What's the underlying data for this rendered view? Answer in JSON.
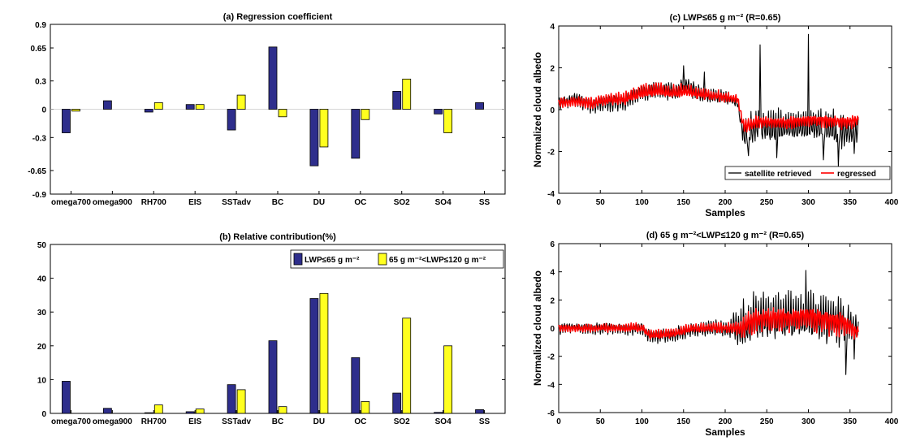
{
  "colors": {
    "lwp_low": "#2e2e8c",
    "lwp_mid": "#ffff1f",
    "retrieved": "#000000",
    "regressed": "#ff0000"
  },
  "chart_data": [
    {
      "id": "a",
      "type": "bar",
      "title": "(a) Regression coefficient",
      "categories": [
        "omega700",
        "omega900",
        "RH700",
        "EIS",
        "SSTadv",
        "BC",
        "DU",
        "OC",
        "SO2",
        "SO4",
        "SS"
      ],
      "series": [
        {
          "values": [
            -0.25,
            0.09,
            -0.03,
            0.05,
            -0.22,
            0.66,
            -0.6,
            -0.52,
            0.19,
            -0.05,
            0.07
          ]
        },
        {
          "values": [
            -0.02,
            0.0,
            0.07,
            0.05,
            0.15,
            -0.08,
            -0.4,
            -0.11,
            0.32,
            -0.25,
            0.0
          ]
        }
      ],
      "ylim": [
        -0.9,
        0.9
      ],
      "yticks": [
        "-0.9",
        "-0.65",
        "-0.3",
        "0",
        "0.3",
        "0.65",
        "0.9"
      ],
      "grid": false
    },
    {
      "id": "b",
      "type": "bar",
      "title": "(b) Relative contribution(%)",
      "categories": [
        "omega700",
        "omega900",
        "RH700",
        "EIS",
        "SSTadv",
        "BC",
        "DU",
        "OC",
        "SO2",
        "SO4",
        "SS"
      ],
      "series": [
        {
          "name": "LWP≤65 g m⁻²",
          "values": [
            9.5,
            1.5,
            0.2,
            0.5,
            8.5,
            21.5,
            34,
            16.5,
            6,
            0.3,
            1.1
          ]
        },
        {
          "name": "65 g m⁻²<LWP≤120 g m⁻²",
          "values": [
            0.0,
            0.0,
            2.5,
            1.3,
            7,
            2,
            35.5,
            3.5,
            28.2,
            20,
            0.0
          ]
        }
      ],
      "ylim": [
        0,
        50
      ],
      "yticks": [
        "0",
        "10",
        "20",
        "30",
        "40",
        "50"
      ],
      "legend_position": "top-right",
      "grid": false
    },
    {
      "id": "c",
      "type": "line",
      "title": "(c) LWP≤65 g m⁻² (R=0.65)",
      "xlabel": "Samples",
      "ylabel": "Normalized cloud albedo",
      "xlim": [
        0,
        400
      ],
      "ylim": [
        -4,
        4
      ],
      "xticks": [
        "0",
        "50",
        "100",
        "150",
        "200",
        "250",
        "300",
        "350",
        "400"
      ],
      "yticks": [
        "-4",
        "-2",
        "0",
        "2",
        "4"
      ],
      "n_samples": 360,
      "legend_position": "bottom-right",
      "series": [
        {
          "name": "satellite retrieved",
          "knots": [
            [
              0,
              0.3
            ],
            [
              20,
              0.5
            ],
            [
              40,
              0.2
            ],
            [
              60,
              0.4
            ],
            [
              80,
              0.4
            ],
            [
              100,
              0.9
            ],
            [
              120,
              1.0
            ],
            [
              140,
              0.9
            ],
            [
              150,
              1.2
            ],
            [
              175,
              0.7
            ],
            [
              200,
              0.6
            ],
            [
              215,
              0.3
            ],
            [
              222,
              -1.3
            ],
            [
              240,
              -0.8
            ],
            [
              260,
              -0.9
            ],
            [
              280,
              -0.8
            ],
            [
              300,
              -0.8
            ],
            [
              320,
              -0.8
            ],
            [
              340,
              -1.1
            ],
            [
              360,
              -1.1
            ]
          ],
          "amp": [
            [
              0,
              0.35
            ],
            [
              100,
              0.5
            ],
            [
              150,
              0.5
            ],
            [
              220,
              0.3
            ],
            [
              222,
              0.9
            ],
            [
              360,
              0.9
            ]
          ],
          "spikes": [
            [
              150,
              2.1
            ],
            [
              175,
              1.8
            ],
            [
              228,
              -2.2
            ],
            [
              242,
              3.1
            ],
            [
              262,
              -2.3
            ],
            [
              300,
              3.6
            ],
            [
              318,
              -2.4
            ],
            [
              336,
              -2.7
            ],
            [
              355,
              -2.1
            ]
          ]
        },
        {
          "name": "regressed",
          "knots": [
            [
              0,
              0.3
            ],
            [
              20,
              0.4
            ],
            [
              40,
              0.3
            ],
            [
              60,
              0.5
            ],
            [
              80,
              0.5
            ],
            [
              100,
              0.8
            ],
            [
              120,
              0.9
            ],
            [
              140,
              0.8
            ],
            [
              150,
              0.9
            ],
            [
              175,
              0.7
            ],
            [
              200,
              0.6
            ],
            [
              215,
              0.5
            ],
            [
              222,
              -0.8
            ],
            [
              240,
              -0.6
            ],
            [
              260,
              -0.6
            ],
            [
              280,
              -0.6
            ],
            [
              300,
              -0.5
            ],
            [
              320,
              -0.5
            ],
            [
              340,
              -0.6
            ],
            [
              360,
              -0.5
            ]
          ],
          "amp": [
            [
              0,
              0.25
            ],
            [
              100,
              0.4
            ],
            [
              150,
              0.35
            ],
            [
              220,
              0.25
            ],
            [
              222,
              0.35
            ],
            [
              360,
              0.35
            ]
          ],
          "spikes": []
        }
      ]
    },
    {
      "id": "d",
      "type": "line",
      "title": "(d) 65 g m⁻²<LWP≤120 g m⁻² (R=0.65)",
      "xlabel": "Samples",
      "ylabel": "Normalized cloud albedo",
      "xlim": [
        0,
        400
      ],
      "ylim": [
        -6,
        6
      ],
      "xticks": [
        "0",
        "50",
        "100",
        "150",
        "200",
        "250",
        "300",
        "350",
        "400"
      ],
      "yticks": [
        "-6",
        "-4",
        "-2",
        "0",
        "2",
        "4",
        "6"
      ],
      "n_samples": 360,
      "series": [
        {
          "name": "satellite retrieved",
          "knots": [
            [
              0,
              0.0
            ],
            [
              50,
              0.0
            ],
            [
              100,
              0.0
            ],
            [
              110,
              -0.5
            ],
            [
              140,
              -0.4
            ],
            [
              160,
              0.0
            ],
            [
              200,
              0.0
            ],
            [
              220,
              0.0
            ],
            [
              235,
              0.6
            ],
            [
              260,
              0.7
            ],
            [
              280,
              0.7
            ],
            [
              300,
              0.8
            ],
            [
              320,
              0.6
            ],
            [
              340,
              0.4
            ],
            [
              360,
              -0.3
            ]
          ],
          "amp": [
            [
              0,
              0.45
            ],
            [
              100,
              0.5
            ],
            [
              110,
              0.6
            ],
            [
              200,
              0.6
            ],
            [
              225,
              2.0
            ],
            [
              300,
              2.2
            ],
            [
              340,
              2.0
            ],
            [
              360,
              1.0
            ]
          ],
          "spikes": [
            [
              297,
              4.1
            ],
            [
              345,
              -3.3
            ],
            [
              355,
              -2.2
            ]
          ]
        },
        {
          "name": "regressed",
          "knots": [
            [
              0,
              0.0
            ],
            [
              50,
              0.0
            ],
            [
              100,
              0.0
            ],
            [
              110,
              -0.5
            ],
            [
              140,
              -0.4
            ],
            [
              160,
              0.0
            ],
            [
              200,
              0.0
            ],
            [
              220,
              0.0
            ],
            [
              235,
              0.6
            ],
            [
              260,
              0.7
            ],
            [
              280,
              0.7
            ],
            [
              300,
              0.8
            ],
            [
              320,
              0.6
            ],
            [
              340,
              0.4
            ],
            [
              360,
              -0.3
            ]
          ],
          "amp": [
            [
              0,
              0.3
            ],
            [
              100,
              0.35
            ],
            [
              110,
              0.4
            ],
            [
              200,
              0.4
            ],
            [
              225,
              0.9
            ],
            [
              300,
              1.0
            ],
            [
              340,
              1.0
            ],
            [
              360,
              0.5
            ]
          ],
          "spikes": []
        }
      ]
    }
  ]
}
